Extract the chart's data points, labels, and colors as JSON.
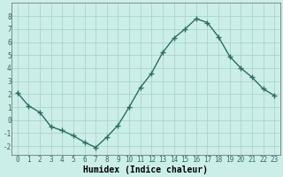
{
  "x": [
    0,
    1,
    2,
    3,
    4,
    5,
    6,
    7,
    8,
    9,
    10,
    11,
    12,
    13,
    14,
    15,
    16,
    17,
    18,
    19,
    20,
    21,
    22,
    23
  ],
  "y": [
    2.1,
    1.1,
    0.6,
    -0.5,
    -0.8,
    -1.2,
    -1.7,
    -2.1,
    -1.3,
    -0.4,
    1.0,
    2.5,
    3.6,
    5.2,
    6.3,
    7.0,
    7.8,
    7.5,
    6.4,
    4.9,
    4.0,
    3.3,
    2.4,
    1.9
  ],
  "line_color": "#2d6e5e",
  "marker": "+",
  "markersize": 4,
  "linewidth": 1.0,
  "bg_color": "#cceee8",
  "grid_color": "#aad4ce",
  "xlabel": "Humidex (Indice chaleur)",
  "xlabel_fontsize": 7,
  "yticks": [
    -2,
    -1,
    0,
    1,
    2,
    3,
    4,
    5,
    6,
    7,
    8
  ],
  "xticks": [
    0,
    1,
    2,
    3,
    4,
    5,
    6,
    7,
    8,
    9,
    10,
    11,
    12,
    13,
    14,
    15,
    16,
    17,
    18,
    19,
    20,
    21,
    22,
    23
  ],
  "xlim": [
    -0.5,
    23.5
  ],
  "ylim": [
    -2.7,
    9.0
  ],
  "tick_fontsize": 5.5,
  "spine_color": "#777777",
  "markeredgewidth": 1.0
}
